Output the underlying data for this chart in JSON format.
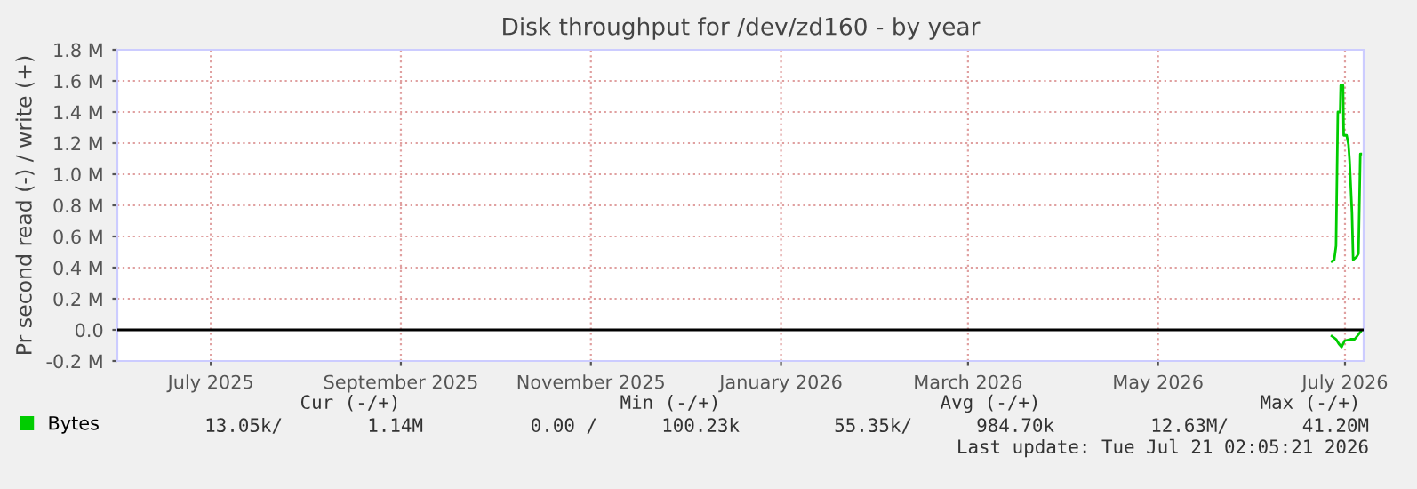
{
  "chart_data": {
    "type": "line",
    "title": "Disk throughput for /dev/zd160 - by year",
    "ylabel": "Pr second read (-) / write (+)",
    "series": [
      {
        "name": "Bytes",
        "color": "#00cc00",
        "x": [
          "2026-07-10T19:00",
          "2026-07-11T13:00",
          "2026-07-12T03:00",
          "2026-07-12T17:00",
          "2026-07-13T11:00",
          "2026-07-13T15:00",
          "2026-07-14T09:00",
          "2026-07-14T14:00",
          "2026-07-15T13:00",
          "2026-07-16T03:00",
          "2026-07-16T12:00",
          "2026-07-17T06:00",
          "2026-07-17T15:00",
          "2026-07-18T18:00",
          "2026-07-19T08:00",
          "2026-07-19T22:00",
          "2026-07-20T02:00"
        ],
        "values": [
          0.44,
          0.45,
          0.54,
          1.4,
          1.4,
          1.57,
          1.57,
          1.25,
          1.25,
          1.19,
          1.08,
          0.75,
          0.45,
          0.47,
          0.49,
          1.13,
          1.13
        ]
      },
      {
        "color": "#00cc00",
        "x": [
          "2026-07-10T19:00",
          "2026-07-12T03:00",
          "2026-07-13T01:00",
          "2026-07-13T22:00",
          "2026-07-14T21:00",
          "2026-07-16T19:00",
          "2026-07-18T03:00",
          "2026-07-19T08:00",
          "2026-07-20T02:00"
        ],
        "values": [
          -0.04,
          -0.06,
          -0.09,
          -0.11,
          -0.07,
          -0.06,
          -0.06,
          -0.03,
          -0.01
        ]
      }
    ],
    "xlim": [
      "2025-06-16",
      "2026-07-21"
    ],
    "xticks": [
      {
        "value": "2025-07-16",
        "label": "July 2025"
      },
      {
        "value": "2025-09-15",
        "label": "September 2025"
      },
      {
        "value": "2025-11-15",
        "label": "November 2025"
      },
      {
        "value": "2026-01-15",
        "label": "January 2026"
      },
      {
        "value": "2026-03-16",
        "label": "March 2026"
      },
      {
        "value": "2026-05-16",
        "label": "May 2026"
      },
      {
        "value": "2026-07-15",
        "label": "July 2026"
      }
    ],
    "ylim": [
      -0.2,
      1.8
    ],
    "yticks": [
      {
        "value": -0.2,
        "label": "-0.2 M"
      },
      {
        "value": 0.0,
        "label": "0.0"
      },
      {
        "value": 0.2,
        "label": "0.2 M"
      },
      {
        "value": 0.4,
        "label": "0.4 M"
      },
      {
        "value": 0.6,
        "label": "0.6 M"
      },
      {
        "value": 0.8,
        "label": "0.8 M"
      },
      {
        "value": 1.0,
        "label": "1.0 M"
      },
      {
        "value": 1.2,
        "label": "1.2 M"
      },
      {
        "value": 1.4,
        "label": "1.4 M"
      },
      {
        "value": 1.6,
        "label": "1.6 M"
      },
      {
        "value": 1.8,
        "label": "1.8 M"
      }
    ],
    "ref_lines": [
      {
        "axis": "y",
        "value": 0,
        "color": "#000000"
      }
    ],
    "grid": true,
    "legend": "bottom left",
    "annotations": [
      "Cur (-/+)",
      "Min (-/+)",
      "Avg (-/+)",
      "Max (-/+)",
      "13.05k/",
      "1.14M",
      "0.00 /",
      "100.23k",
      "55.35k/",
      "984.70k",
      "12.63M/",
      "41.20M",
      "Last update: Tue Jul 21 02:05:21 2026"
    ]
  }
}
